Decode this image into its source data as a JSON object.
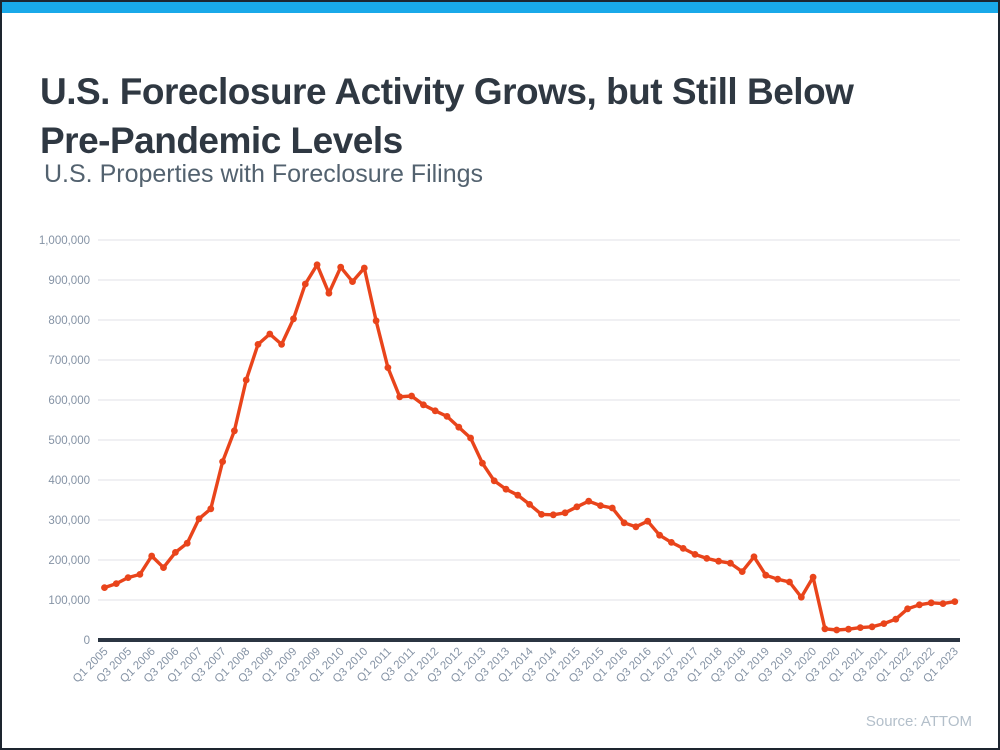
{
  "header": {
    "title": "U.S. Foreclosure Activity Grows, but Still Below Pre-Pandemic Levels",
    "subtitle": "U.S. Properties with Foreclosure Filings"
  },
  "footer": {
    "source": "Source: ATTOM"
  },
  "colors": {
    "accent_bar": "#19a9e9",
    "line": "#e9441b",
    "grid": "#e6e8ec",
    "axis": "#2b3542",
    "tick_label": "#8593a5",
    "title_text": "#2f3842",
    "subtitle_text": "#53626f",
    "source_text": "#b3bfca"
  },
  "chart_data": {
    "type": "line",
    "title": "U.S. Properties with Foreclosure Filings",
    "xlabel": "",
    "ylabel": "",
    "ylim": [
      0,
      1000000
    ],
    "ytick_step": 100000,
    "grid": true,
    "legend": false,
    "marker": "dot",
    "line_color": "#e9441b",
    "x_tick_labels": [
      "Q1 2005",
      "Q3 2005",
      "Q1 2006",
      "Q3 2006",
      "Q1 2007",
      "Q3 2007",
      "Q1 2008",
      "Q3 2008",
      "Q1 2009",
      "Q3 2009",
      "Q1 2010",
      "Q3 2010",
      "Q1 2011",
      "Q3 2011",
      "Q1 2012",
      "Q3 2012",
      "Q1 2013",
      "Q3 2013",
      "Q1 2014",
      "Q3 2014",
      "Q1 2015",
      "Q3 2015",
      "Q1 2016",
      "Q3 2016",
      "Q1 2017",
      "Q3 2017",
      "Q1 2018",
      "Q3 2018",
      "Q1 2019",
      "Q3 2019",
      "Q1 2020",
      "Q3 2020",
      "Q1 2021",
      "Q3 2021",
      "Q1 2022",
      "Q3 2022",
      "Q1 2023"
    ],
    "x_quarters": [
      "Q1 2005",
      "Q2 2005",
      "Q3 2005",
      "Q4 2005",
      "Q1 2006",
      "Q2 2006",
      "Q3 2006",
      "Q4 2006",
      "Q1 2007",
      "Q2 2007",
      "Q3 2007",
      "Q4 2007",
      "Q1 2008",
      "Q2 2008",
      "Q3 2008",
      "Q4 2008",
      "Q1 2009",
      "Q2 2009",
      "Q3 2009",
      "Q4 2009",
      "Q1 2010",
      "Q2 2010",
      "Q3 2010",
      "Q4 2010",
      "Q1 2011",
      "Q2 2011",
      "Q3 2011",
      "Q4 2011",
      "Q1 2012",
      "Q2 2012",
      "Q3 2012",
      "Q4 2012",
      "Q1 2013",
      "Q2 2013",
      "Q3 2013",
      "Q4 2013",
      "Q1 2014",
      "Q2 2014",
      "Q3 2014",
      "Q4 2014",
      "Q1 2015",
      "Q2 2015",
      "Q3 2015",
      "Q4 2015",
      "Q1 2016",
      "Q2 2016",
      "Q3 2016",
      "Q4 2016",
      "Q1 2017",
      "Q2 2017",
      "Q3 2017",
      "Q4 2017",
      "Q1 2018",
      "Q2 2018",
      "Q3 2018",
      "Q4 2018",
      "Q1 2019",
      "Q2 2019",
      "Q3 2019",
      "Q4 2019",
      "Q1 2020",
      "Q2 2020",
      "Q3 2020",
      "Q4 2020",
      "Q1 2021",
      "Q2 2021",
      "Q3 2021",
      "Q4 2021",
      "Q1 2022",
      "Q2 2022",
      "Q3 2022",
      "Q4 2022",
      "Q1 2023"
    ],
    "values": [
      131000,
      141000,
      156000,
      164000,
      210000,
      181000,
      219000,
      242000,
      303000,
      328000,
      446000,
      523000,
      650000,
      739000,
      765000,
      739000,
      803000,
      890000,
      938000,
      867000,
      932000,
      896000,
      930000,
      798000,
      681000,
      608000,
      610000,
      588000,
      573000,
      559000,
      532000,
      505000,
      442000,
      398000,
      377000,
      362000,
      339000,
      314000,
      313000,
      318000,
      333000,
      347000,
      336000,
      330000,
      293000,
      283000,
      297000,
      262000,
      244000,
      229000,
      214000,
      204000,
      197000,
      192000,
      171000,
      208000,
      162000,
      152000,
      145000,
      107000,
      157000,
      28000,
      25000,
      27000,
      31000,
      33000,
      41000,
      52000,
      78000,
      88000,
      93000,
      91000,
      96000
    ]
  }
}
